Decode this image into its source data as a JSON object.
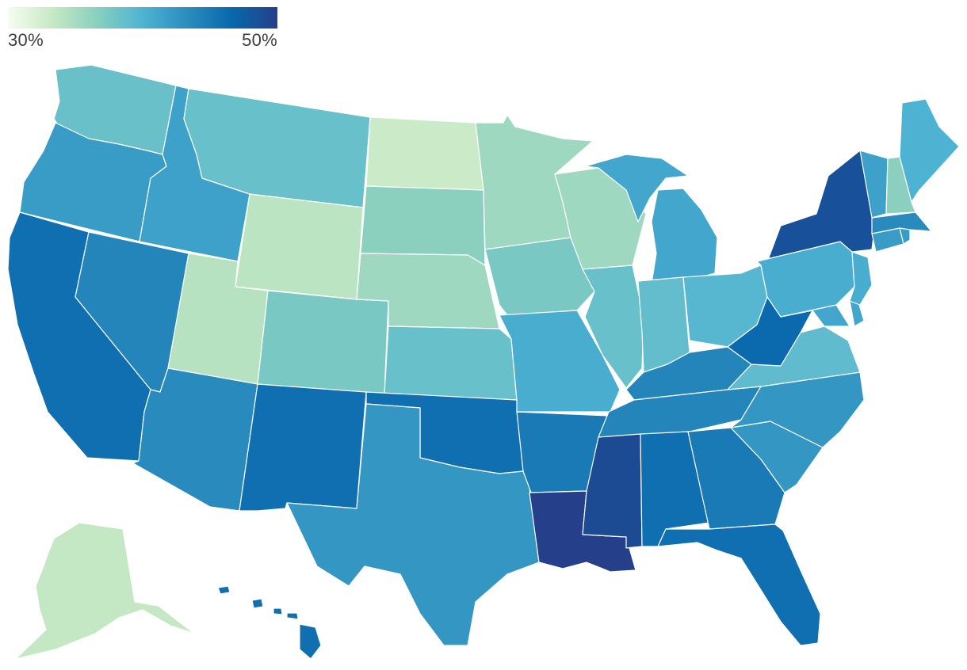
{
  "legend": {
    "min_label": "30%",
    "max_label": "50%",
    "min_value": 30,
    "max_value": 50,
    "colors": [
      "#f7fcf0",
      "#c6e9c3",
      "#88cfbf",
      "#4eb3d3",
      "#2b8cbe",
      "#0868ac",
      "#253f8a"
    ]
  },
  "states": [
    {
      "id": "WA",
      "value": 38.4
    },
    {
      "id": "OR",
      "value": 42.0
    },
    {
      "id": "CA",
      "value": 46.0
    },
    {
      "id": "ID",
      "value": 41.5
    },
    {
      "id": "NV",
      "value": 44.0
    },
    {
      "id": "MT",
      "value": 38.5
    },
    {
      "id": "WY",
      "value": 34.0
    },
    {
      "id": "UT",
      "value": 34.2
    },
    {
      "id": "AZ",
      "value": 43.5
    },
    {
      "id": "NM",
      "value": 46.0
    },
    {
      "id": "CO",
      "value": 37.5
    },
    {
      "id": "ND",
      "value": 33.0
    },
    {
      "id": "SD",
      "value": 36.5
    },
    {
      "id": "NE",
      "value": 35.5
    },
    {
      "id": "KS",
      "value": 38.5
    },
    {
      "id": "OK",
      "value": 46.0
    },
    {
      "id": "TX",
      "value": 42.5
    },
    {
      "id": "MN",
      "value": 35.5
    },
    {
      "id": "IA",
      "value": 37.5
    },
    {
      "id": "MO",
      "value": 40.5
    },
    {
      "id": "AR",
      "value": 45.0
    },
    {
      "id": "LA",
      "value": 50.0
    },
    {
      "id": "WI",
      "value": 35.5
    },
    {
      "id": "IL",
      "value": 38.5
    },
    {
      "id": "MI",
      "value": 41.0
    },
    {
      "id": "IN",
      "value": 38.8
    },
    {
      "id": "OH",
      "value": 39.5
    },
    {
      "id": "KY",
      "value": 44.0
    },
    {
      "id": "TN",
      "value": 44.0
    },
    {
      "id": "MS",
      "value": 49.0
    },
    {
      "id": "AL",
      "value": 46.0
    },
    {
      "id": "GA",
      "value": 45.0
    },
    {
      "id": "FL",
      "value": 46.0
    },
    {
      "id": "SC",
      "value": 42.5
    },
    {
      "id": "NC",
      "value": 42.5
    },
    {
      "id": "VA",
      "value": 39.0
    },
    {
      "id": "WV",
      "value": 46.5
    },
    {
      "id": "MD",
      "value": 41.0
    },
    {
      "id": "DE",
      "value": 41.0
    },
    {
      "id": "PA",
      "value": 40.5
    },
    {
      "id": "NJ",
      "value": 40.5
    },
    {
      "id": "NY",
      "value": 48.5
    },
    {
      "id": "CT",
      "value": 42.0
    },
    {
      "id": "RI",
      "value": 42.0
    },
    {
      "id": "MA",
      "value": 43.5
    },
    {
      "id": "VT",
      "value": 41.5
    },
    {
      "id": "NH",
      "value": 36.5
    },
    {
      "id": "ME",
      "value": 40.0
    },
    {
      "id": "AK",
      "value": 33.5
    },
    {
      "id": "HI",
      "value": 46.0
    }
  ]
}
